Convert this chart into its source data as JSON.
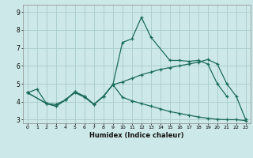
{
  "xlabel": "Humidex (Indice chaleur)",
  "bg_color": "#cde8e8",
  "grid_color": "#aacccc",
  "line_color": "#1a6b5a",
  "xlim": [
    -0.5,
    23.5
  ],
  "ylim": [
    2.8,
    9.4
  ],
  "xticks": [
    0,
    1,
    2,
    3,
    4,
    5,
    6,
    7,
    8,
    9,
    10,
    11,
    12,
    13,
    14,
    15,
    16,
    17,
    18,
    19,
    20,
    21,
    22,
    23
  ],
  "yticks": [
    3,
    4,
    5,
    6,
    7,
    8,
    9
  ],
  "line_peaked": {
    "x": [
      0,
      1,
      2,
      3,
      4,
      5,
      6,
      7,
      8,
      9,
      10,
      11,
      12,
      13,
      15,
      16,
      17,
      18,
      19,
      20,
      21
    ],
    "y": [
      4.5,
      4.7,
      3.9,
      3.85,
      4.1,
      4.5,
      4.25,
      3.85,
      4.3,
      4.95,
      7.3,
      7.5,
      8.7,
      7.6,
      6.3,
      6.3,
      6.25,
      6.3,
      6.1,
      5.0,
      4.3
    ]
  },
  "line_rising": {
    "x": [
      0,
      2,
      3,
      4,
      5,
      6,
      7,
      8,
      9,
      10,
      11,
      12,
      13,
      14,
      15,
      16,
      17,
      18,
      19,
      20,
      21,
      22,
      23
    ],
    "y": [
      4.5,
      3.9,
      3.75,
      4.1,
      4.55,
      4.3,
      3.85,
      4.3,
      4.95,
      5.1,
      5.3,
      5.5,
      5.65,
      5.8,
      5.9,
      6.0,
      6.1,
      6.2,
      6.35,
      6.1,
      5.0,
      4.3,
      3.0
    ]
  },
  "line_falling": {
    "x": [
      0,
      2,
      3,
      4,
      5,
      6,
      7,
      8,
      9,
      10,
      11,
      12,
      13,
      14,
      15,
      16,
      17,
      18,
      19,
      20,
      21,
      22,
      23
    ],
    "y": [
      4.5,
      3.9,
      3.75,
      4.1,
      4.55,
      4.3,
      3.85,
      4.3,
      4.95,
      4.25,
      4.05,
      3.9,
      3.75,
      3.6,
      3.45,
      3.35,
      3.25,
      3.15,
      3.08,
      3.02,
      3.0,
      3.0,
      2.95
    ]
  }
}
